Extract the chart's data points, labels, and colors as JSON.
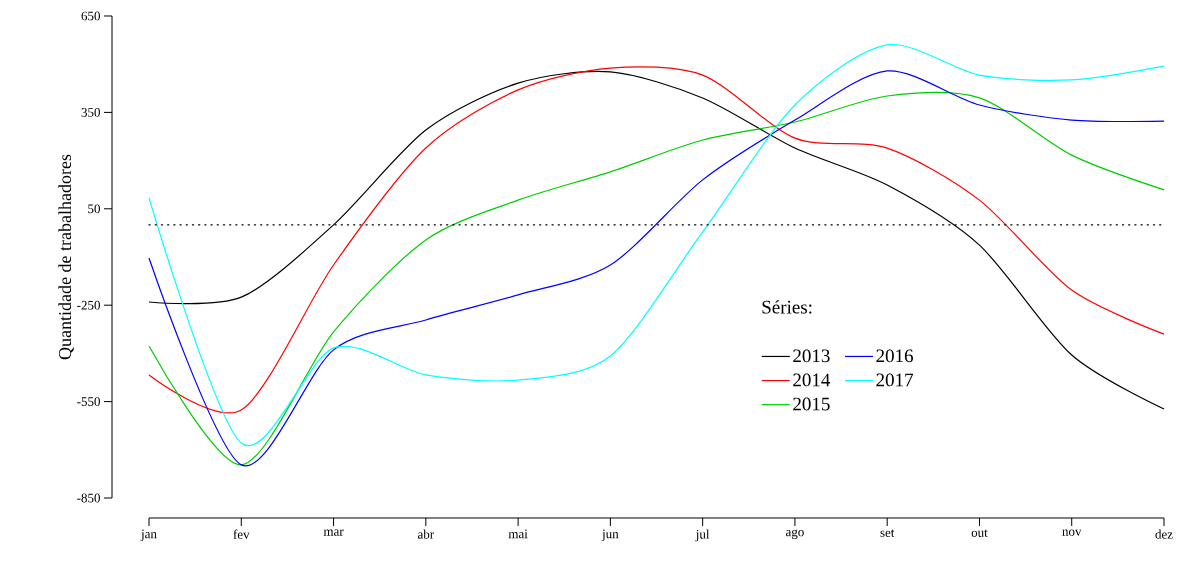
{
  "chart_data": {
    "type": "line",
    "ylabel": "Quantidade de trabalhadores",
    "legend_title": "Séries:",
    "categories": [
      "jan",
      "fev",
      "mar",
      "abr",
      "mai",
      "jun",
      "jul",
      "ago",
      "set",
      "out",
      "nov",
      "dez"
    ],
    "series": [
      {
        "name": "2013",
        "color": "#000000",
        "values": [
          -240,
          -225,
          0,
          295,
          441,
          476,
          395,
          239,
          124,
          -63,
          -405,
          -573
        ]
      },
      {
        "name": "2014",
        "color": "#ff0000",
        "values": [
          -467,
          -576,
          -125,
          239,
          420,
          488,
          466,
          270,
          239,
          77,
          -203,
          -340
        ]
      },
      {
        "name": "2015",
        "color": "#00cd00",
        "values": [
          -377,
          -747,
          -333,
          -47,
          77,
          165,
          264,
          320,
          401,
          395,
          217,
          109
        ]
      },
      {
        "name": "2016",
        "color": "#0000ff",
        "values": [
          -103,
          -747,
          -389,
          -296,
          -218,
          -125,
          140,
          326,
          479,
          373,
          326,
          323
        ]
      },
      {
        "name": "2017",
        "color": "#00ffff",
        "values": [
          84,
          -679,
          -383,
          -467,
          -483,
          -408,
          -22,
          373,
          560,
          466,
          451,
          494
        ]
      }
    ],
    "ylim": [
      -850,
      650
    ],
    "yticks": [
      -850,
      -550,
      -250,
      50,
      350,
      650
    ],
    "ref_lines": [
      {
        "axis": "y",
        "value": 0,
        "color": "#000000",
        "line_style": "dotted"
      }
    ],
    "legend": "center",
    "grid": false,
    "marker": "none",
    "line_style": "solid"
  }
}
